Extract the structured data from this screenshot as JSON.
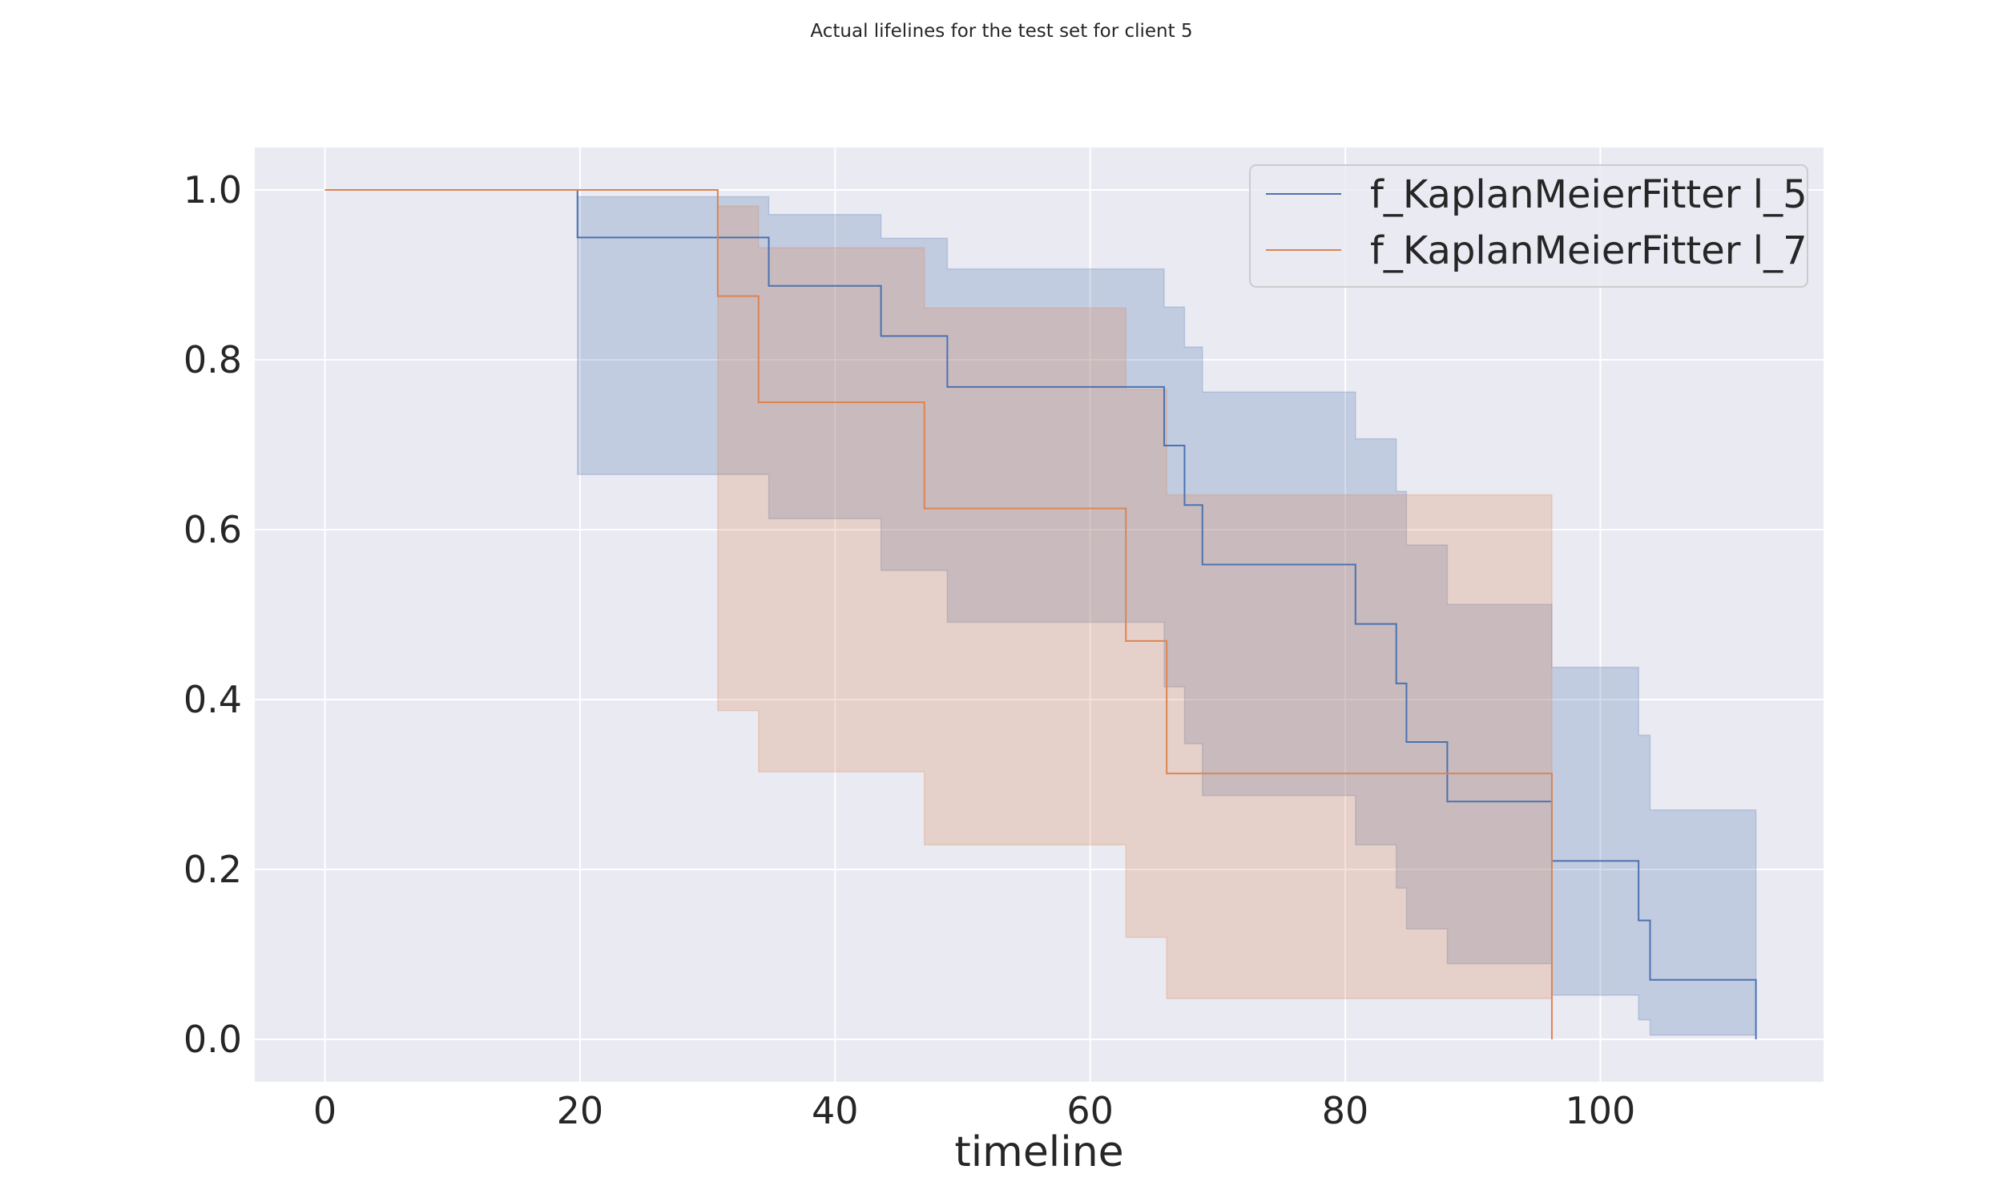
{
  "chart_data": {
    "type": "line",
    "title": "Actual lifelines for the test set for client 5",
    "xlabel": "timeline",
    "ylabel": "",
    "xlim": [
      -5.5,
      117.5
    ],
    "ylim": [
      -0.05,
      1.05
    ],
    "xticks": [
      0,
      20,
      40,
      60,
      80,
      100
    ],
    "yticks": [
      0.0,
      0.2,
      0.4,
      0.6,
      0.8,
      1.0
    ],
    "xtick_labels": [
      "0",
      "20",
      "40",
      "60",
      "80",
      "100"
    ],
    "ytick_labels": [
      "0.0",
      "0.2",
      "0.4",
      "0.6",
      "0.8",
      "1.0"
    ],
    "grid": true,
    "legend_position": "top-right",
    "background": "#eaeaf2",
    "series": [
      {
        "name": "f_KaplanMeierFitter l_5",
        "color": "#4c72b0",
        "step": "post",
        "x": [
          0,
          19.8,
          34.8,
          43.6,
          48.8,
          65.8,
          67.4,
          68.8,
          80.8,
          84.0,
          84.8,
          88.0,
          96.2,
          103.0,
          103.9,
          112.2
        ],
        "y": [
          1.0,
          0.944,
          0.887,
          0.828,
          0.768,
          0.699,
          0.629,
          0.559,
          0.489,
          0.419,
          0.35,
          0.28,
          0.21,
          0.14,
          0.07,
          0.0
        ],
        "ci_lower": [
          1.0,
          0.665,
          0.613,
          0.552,
          0.491,
          0.415,
          0.348,
          0.287,
          0.229,
          0.178,
          0.13,
          0.089,
          0.052,
          0.023,
          0.005,
          0.005
        ],
        "ci_upper": [
          1.0,
          0.992,
          0.971,
          0.943,
          0.907,
          0.862,
          0.815,
          0.762,
          0.707,
          0.645,
          0.582,
          0.512,
          0.438,
          0.358,
          0.27,
          0.27
        ]
      },
      {
        "name": "f_KaplanMeierFitter l_7",
        "color": "#dd8452",
        "step": "post",
        "x": [
          0,
          30.8,
          34.0,
          47.0,
          62.8,
          66.0,
          96.2
        ],
        "y": [
          1.0,
          0.875,
          0.75,
          0.625,
          0.469,
          0.313,
          0.0
        ],
        "ci_lower": [
          1.0,
          0.387,
          0.315,
          0.229,
          0.12,
          0.048,
          0.048
        ],
        "ci_upper": [
          1.0,
          0.981,
          0.932,
          0.861,
          0.765,
          0.641,
          0.641
        ]
      }
    ]
  }
}
